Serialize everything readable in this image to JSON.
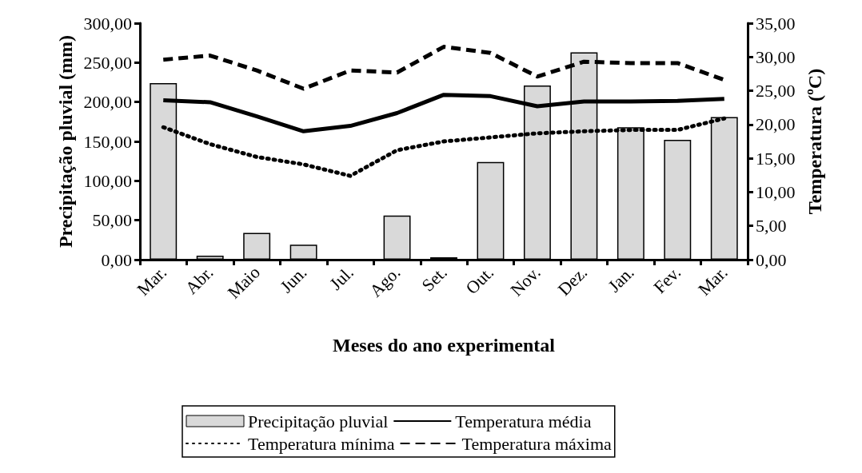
{
  "chart_data": {
    "type": "bar",
    "xlabel": "Meses do ano experimental",
    "ylabel": "Precipitação pluvial (mm)",
    "y2label": "Temperatura (ºC)",
    "categories": [
      "Mar.",
      "Abr.",
      "Maio",
      "Jun.",
      "Jul.",
      "Ago.",
      "Set.",
      "Out.",
      "Nov.",
      "Dez.",
      "Jan.",
      "Fev.",
      "Mar."
    ],
    "series": [
      {
        "name": "Precipitação pluvial",
        "color": "#d9d9d9",
        "values": [
          224,
          5,
          34,
          19,
          0,
          56,
          3,
          124,
          221,
          263,
          168,
          152,
          181
        ]
      },
      {
        "name": "Temperatura média",
        "type": "line",
        "axis": "y2",
        "line_style": "solid",
        "color": "#000000",
        "values": [
          23.6,
          23.3,
          21.2,
          19.0,
          19.8,
          21.7,
          24.4,
          24.2,
          22.7,
          23.4,
          23.4,
          23.5,
          23.8
        ]
      },
      {
        "name": "Temperatura mínima",
        "type": "line",
        "axis": "y2",
        "line_style": "dotted",
        "color": "#000000",
        "values": [
          19.6,
          17.1,
          15.2,
          14.1,
          12.4,
          16.2,
          17.5,
          18.1,
          18.7,
          19.0,
          19.2,
          19.2,
          20.9
        ]
      },
      {
        "name": "Temperatura máxima",
        "type": "line",
        "axis": "y2",
        "line_style": "dashed",
        "color": "#000000",
        "values": [
          29.6,
          30.2,
          28.0,
          25.3,
          28.0,
          27.7,
          31.5,
          30.6,
          27.1,
          29.3,
          29.1,
          29.1,
          26.6
        ]
      }
    ],
    "ylim": [
      0,
      300
    ],
    "yticks": [
      {
        "value": 0,
        "label": "0,00"
      },
      {
        "value": 50,
        "label": "50,00"
      },
      {
        "value": 100,
        "label": "100,00"
      },
      {
        "value": 150,
        "label": "150,00"
      },
      {
        "value": 200,
        "label": "200,00"
      },
      {
        "value": 250,
        "label": "250,00"
      },
      {
        "value": 300,
        "label": "300,00"
      }
    ],
    "y2lim": [
      0,
      35
    ],
    "y2ticks": [
      {
        "value": 0,
        "label": "0,00"
      },
      {
        "value": 5,
        "label": "5,00"
      },
      {
        "value": 10,
        "label": "10,00"
      },
      {
        "value": 15,
        "label": "15,00"
      },
      {
        "value": 20,
        "label": "20,00"
      },
      {
        "value": 25,
        "label": "25,00"
      },
      {
        "value": 30,
        "label": "30,00"
      },
      {
        "value": 35,
        "label": "35,00"
      }
    ],
    "marker": "none",
    "grid": false,
    "legend": "bottom"
  }
}
